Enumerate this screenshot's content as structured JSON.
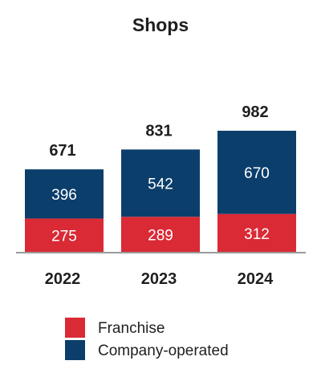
{
  "chart_data": {
    "type": "bar",
    "stacked": true,
    "title": "Shops",
    "categories": [
      "2022",
      "2023",
      "2024"
    ],
    "totals": [
      671,
      831,
      982
    ],
    "series": [
      {
        "name": "Franchise",
        "values": [
          275,
          289,
          312
        ],
        "color": "#d92a36"
      },
      {
        "name": "Company-operated",
        "values": [
          396,
          542,
          670
        ],
        "color": "#0b3e6b"
      }
    ],
    "xlabel": "",
    "ylabel": "",
    "grid": false,
    "legend": "bottom-left",
    "axis_color": "#9a9a9a"
  }
}
